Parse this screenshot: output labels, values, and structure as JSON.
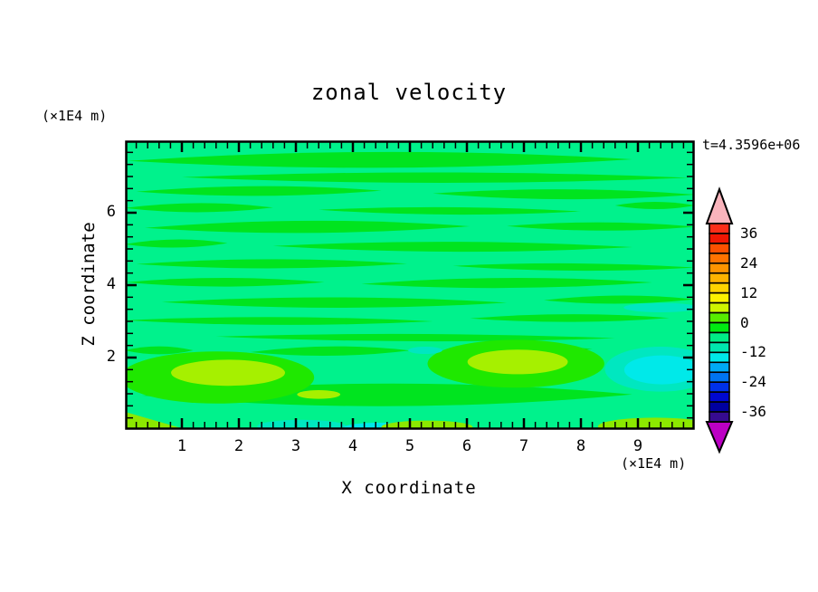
{
  "title": "zonal velocity",
  "annotations": {
    "time_label": "t=4.3596e+06"
  },
  "axes": {
    "x": {
      "label": "X coordinate",
      "unit_label": "(×1E4 m)",
      "range": [
        0,
        10
      ],
      "major_ticks": [
        1,
        2,
        3,
        4,
        5,
        6,
        7,
        8,
        9
      ],
      "minor_step": 0.2
    },
    "z": {
      "label": "Z coordinate",
      "unit_label": "(×1E4 m)",
      "range": [
        0,
        8
      ],
      "major_ticks": [
        2,
        4,
        6
      ],
      "minor_divisions_per_unit": 3
    }
  },
  "colorbar": {
    "tick_labels": [
      "36",
      "24",
      "12",
      "0",
      "-12",
      "-24",
      "-36"
    ],
    "level_step": 4,
    "value_range": [
      -40,
      40
    ],
    "over_color": "#f9b4bc",
    "under_color": "#bc00c4",
    "colors_top_to_bottom": [
      "#fb2e19",
      "#f01703",
      "#fc5000",
      "#ff7300",
      "#ff9400",
      "#ffb300",
      "#ffd400",
      "#fcf200",
      "#cef500",
      "#57ec00",
      "#00e912",
      "#00ec86",
      "#00e7ae",
      "#00e8e8",
      "#00aaf5",
      "#0073f0",
      "#0031e8",
      "#0008d0",
      "#0000a0",
      "#360b90"
    ]
  },
  "chart_data": {
    "type": "filled_contour",
    "title": "zonal velocity",
    "xlabel": "X coordinate (×1E4 m)",
    "zlabel": "Z coordinate (×1E4 m)",
    "time": "t=4.3596e+06",
    "x_range": [
      0,
      10
    ],
    "z_range": [
      0,
      8
    ],
    "contour_interval": 4,
    "background_level": "-4..0",
    "palette": {
      "background": "#00f28c",
      "green": "#00e41f",
      "green_bright": "#1fe800",
      "chartreuse": "#a6f000",
      "green_yellow": "#8ce800",
      "aquamarine": "#00e7c0",
      "cyan": "#00e9e9"
    },
    "streaks_level_0_to_4": [
      [
        0.05,
        8.9,
        7.43,
        0.4
      ],
      [
        1.0,
        9.9,
        6.98,
        0.3
      ],
      [
        0.2,
        4.5,
        6.58,
        0.24
      ],
      [
        5.4,
        10,
        6.53,
        0.3
      ],
      [
        0,
        2.6,
        6.13,
        0.24
      ],
      [
        3.4,
        8.0,
        6.08,
        0.24
      ],
      [
        8.6,
        10,
        6.2,
        0.2
      ],
      [
        0.35,
        6.05,
        5.58,
        0.3
      ],
      [
        6.7,
        10,
        5.63,
        0.24
      ],
      [
        0,
        1.8,
        5.13,
        0.2
      ],
      [
        2.6,
        8.9,
        5.08,
        0.3
      ],
      [
        0.2,
        4.95,
        4.58,
        0.24
      ],
      [
        5.75,
        10,
        4.53,
        0.24
      ],
      [
        0,
        3.5,
        4.08,
        0.24
      ],
      [
        4.15,
        9.25,
        4.03,
        0.24
      ],
      [
        0.65,
        6.7,
        3.53,
        0.3
      ],
      [
        7.35,
        10,
        3.58,
        0.2
      ],
      [
        0,
        5.4,
        3.03,
        0.24
      ],
      [
        6.05,
        9.55,
        3.08,
        0.2
      ],
      [
        1.6,
        8.6,
        2.58,
        0.24
      ],
      [
        0,
        1.2,
        2.2,
        0.22
      ],
      [
        2.2,
        5.0,
        2.15,
        0.22
      ],
      [
        5.8,
        8.2,
        2.25,
        0.2
      ],
      [
        0.3,
        8.9,
        0.95,
        0.6
      ]
    ],
    "features": [
      {
        "shape": "ellipse",
        "cx": 1.62,
        "cz": 1.45,
        "rx": 1.7,
        "rz": 0.72,
        "color": "green_bright",
        "level": "0..4"
      },
      {
        "shape": "ellipse",
        "cx": 6.86,
        "cz": 1.83,
        "rx": 1.55,
        "rz": 0.66,
        "color": "green_bright",
        "level": "0..4"
      },
      {
        "shape": "ellipse",
        "cx": 1.81,
        "cz": 1.58,
        "rx": 1.0,
        "rz": 0.36,
        "color": "chartreuse",
        "level": "8..12"
      },
      {
        "shape": "ellipse",
        "cx": 6.89,
        "cz": 1.88,
        "rx": 0.88,
        "rz": 0.34,
        "color": "chartreuse",
        "level": "8..12"
      },
      {
        "shape": "ellipse",
        "cx": 3.4,
        "cz": 0.98,
        "rx": 0.38,
        "rz": 0.12,
        "color": "chartreuse",
        "level": "8..12"
      },
      {
        "shape": "ellipse",
        "cx": 9.4,
        "cz": 1.68,
        "rx": 0.98,
        "rz": 0.62,
        "color": "aquamarine",
        "level": "-8..-4"
      },
      {
        "shape": "ellipse",
        "cx": 9.42,
        "cz": 1.66,
        "rx": 0.66,
        "rz": 0.4,
        "color": "cyan",
        "level": "-12..-8"
      },
      {
        "shape": "ellipse",
        "cx": 9.4,
        "cz": 3.38,
        "rx": 0.65,
        "rz": 0.13,
        "color": "aquamarine",
        "level": "-8..-4"
      },
      {
        "shape": "ellipse",
        "cx": 3.1,
        "cz": 0.1,
        "rx": 0.78,
        "rz": 0.18,
        "color": "aquamarine",
        "level": "-8..-4"
      },
      {
        "shape": "ellipse",
        "cx": 4.45,
        "cz": 0.07,
        "rx": 0.6,
        "rz": 0.13,
        "color": "cyan",
        "level": "-12..-8"
      },
      {
        "shape": "ellipse",
        "cx": 5.3,
        "cz": 0.08,
        "rx": 0.8,
        "rz": 0.18,
        "color": "green_yellow",
        "level": "4..8"
      },
      {
        "shape": "ellipse",
        "cx": 9.3,
        "cz": 0.1,
        "rx": 1.0,
        "rz": 0.24,
        "color": "green_yellow",
        "level": "4..8"
      },
      {
        "shape": "ellipse",
        "cx": 5.27,
        "cz": 2.2,
        "rx": 0.3,
        "rz": 0.1,
        "color": "aquamarine",
        "level": "-8..-4"
      },
      {
        "shape": "corner_triangle",
        "x1": 0,
        "x2": 1.1,
        "z1": 0,
        "z2": 0.5,
        "color": "green_yellow",
        "level": "4..8"
      }
    ]
  }
}
